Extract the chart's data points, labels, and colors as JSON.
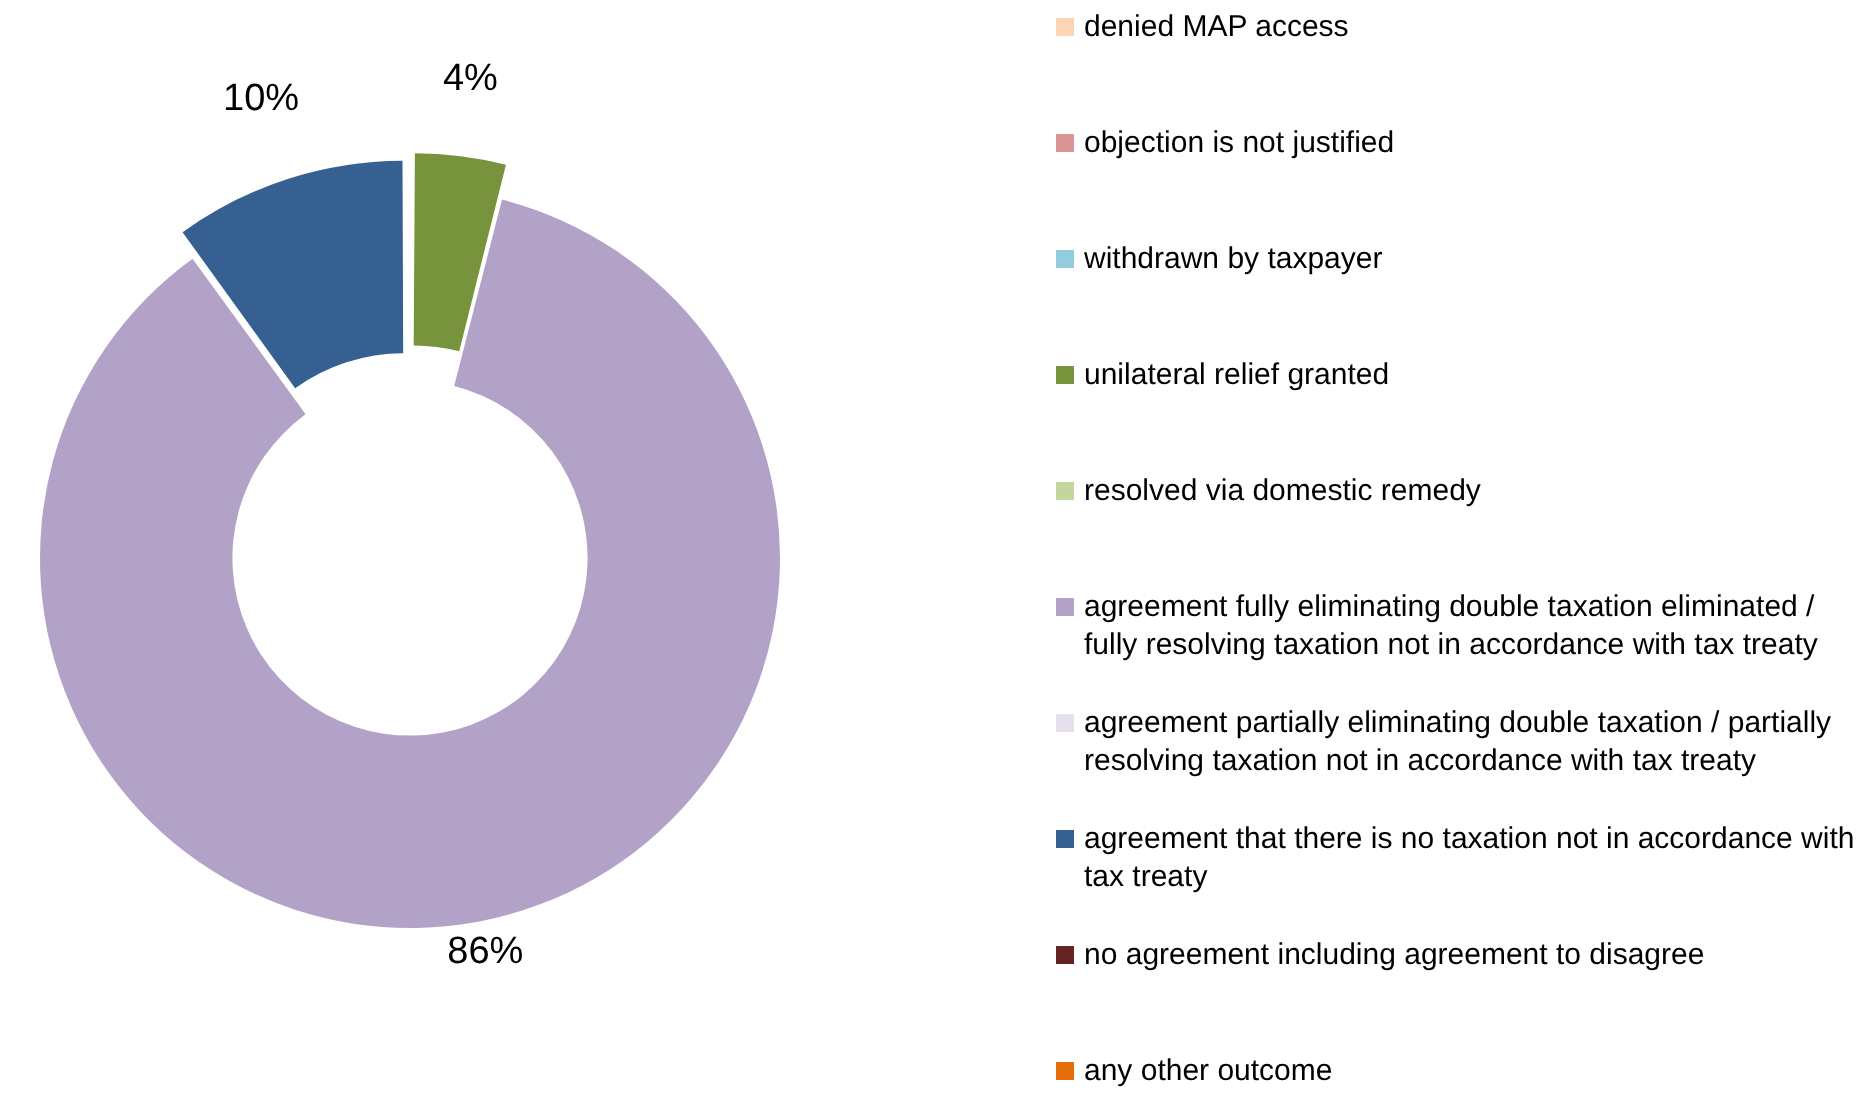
{
  "chart_data": {
    "type": "donut",
    "categories": [
      "denied MAP access",
      "objection is not justified",
      "withdrawn by taxpayer",
      "unilateral relief granted",
      "resolved via domestic remedy",
      "agreement fully eliminating double taxation eliminated / fully resolving taxation not in accordance with tax treaty",
      "agreement partially eliminating double taxation / partially resolving taxation not in accordance with tax treaty",
      "agreement that there is no taxation not in accordance with tax treaty",
      "no agreement including agreement to disagree",
      "any other outcome"
    ],
    "values": [
      0,
      0,
      0,
      4,
      0,
      86,
      0,
      10,
      0,
      0
    ],
    "colors": [
      "#fcd5b5",
      "#d99694",
      "#93cddd",
      "#77933c",
      "#c3d69b",
      "#b3a2c7",
      "#e6e0ec",
      "#376092",
      "#632523",
      "#e46c0a"
    ],
    "value_labels": [
      null,
      null,
      null,
      "4%",
      null,
      "86%",
      null,
      "10%",
      null,
      null
    ],
    "legend": "right"
  }
}
